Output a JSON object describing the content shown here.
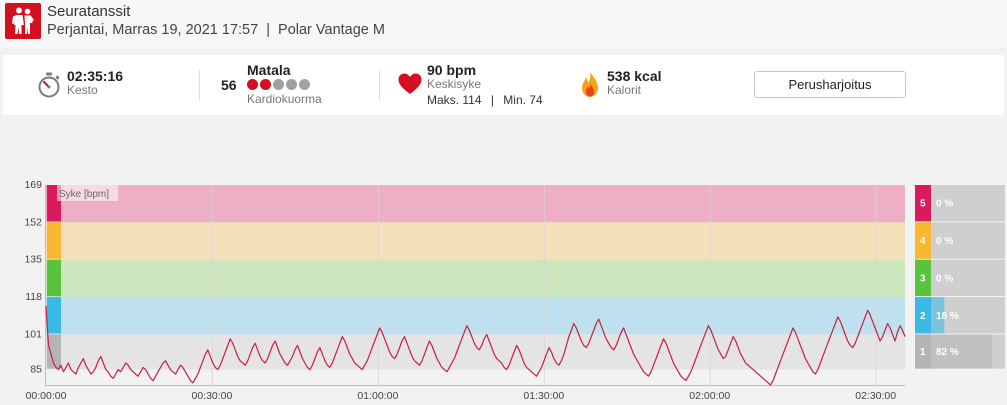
{
  "header": {
    "title": "Seuratanssit",
    "date": "Perjantai, Marras 19, 2021 17:57",
    "separator": "|",
    "device": "Polar Vantage M",
    "icon": "dancing-couple-icon",
    "icon_color": "#d3101f"
  },
  "summary": {
    "duration": {
      "value": "02:35:16",
      "label": "Kesto",
      "icon": "stopwatch-icon"
    },
    "cardio_load": {
      "value": "56",
      "level": "Matala",
      "label": "Kardiokuorma",
      "filled_dots": 2,
      "total_dots": 5,
      "dot_color": "#d3101f",
      "dot_empty_color": "#a0a0a0"
    },
    "heart_rate": {
      "value": "90 bpm",
      "label": "Keskisyke",
      "max": "Maks. 114",
      "separator": "|",
      "min": "Min. 74",
      "icon": "heart-icon",
      "icon_color": "#d3101f"
    },
    "calories": {
      "value": "538 kcal",
      "label": "Kalorit",
      "icon": "flame-icon"
    },
    "training_benefit_button": "Perusharjoitus"
  },
  "chart_data": {
    "type": "line",
    "series_label": "Syke [bpm]",
    "y_ticks": [
      "169",
      "152",
      "135",
      "118",
      "101",
      "85"
    ],
    "y_tick_values": [
      169,
      152,
      135,
      118,
      101,
      85
    ],
    "ylim": [
      78,
      169
    ],
    "x_ticks": [
      "00:00:00",
      "00:30:00",
      "01:00:00",
      "01:30:00",
      "02:00:00",
      "02:30:00"
    ],
    "x_tick_minutes": [
      0,
      30,
      60,
      90,
      120,
      150
    ],
    "xlim_minutes": [
      0,
      155.3
    ],
    "zones": [
      {
        "zone": "5",
        "from": 152,
        "to": 169,
        "percent": "0 %",
        "fraction": 0.0,
        "color": "#d81b5c",
        "band_color": "#edaec6"
      },
      {
        "zone": "4",
        "from": 135,
        "to": 152,
        "percent": "0 %",
        "fraction": 0.0,
        "color": "#f7b731",
        "band_color": "#f4e0b8"
      },
      {
        "zone": "3",
        "from": 118,
        "to": 135,
        "percent": "0 %",
        "fraction": 0.0,
        "color": "#58c33c",
        "band_color": "#cce6bd"
      },
      {
        "zone": "2",
        "from": 101,
        "to": 118,
        "percent": "18 %",
        "fraction": 0.18,
        "color": "#3ab8e6",
        "band_color": "#bfe1ef"
      },
      {
        "zone": "1",
        "from": 85,
        "to": 101,
        "percent": "82 %",
        "fraction": 0.82,
        "color": "#b4b4b4",
        "band_color": "#e4e4e4"
      }
    ],
    "line_color": "#c8203f",
    "hr_bpm": [
      114,
      96,
      92,
      88,
      86,
      85,
      87,
      84,
      86,
      88,
      85,
      84,
      83,
      86,
      88,
      90,
      87,
      85,
      83,
      84,
      86,
      89,
      91,
      88,
      85,
      84,
      82,
      81,
      83,
      85,
      84,
      86,
      88,
      87,
      85,
      84,
      83,
      82,
      84,
      86,
      85,
      83,
      81,
      80,
      82,
      84,
      86,
      88,
      89,
      87,
      85,
      84,
      83,
      85,
      87,
      86,
      84,
      82,
      80,
      79,
      81,
      83,
      86,
      89,
      92,
      94,
      91,
      88,
      86,
      85,
      87,
      90,
      93,
      96,
      99,
      97,
      94,
      91,
      89,
      88,
      87,
      89,
      92,
      95,
      97,
      94,
      91,
      89,
      88,
      90,
      93,
      96,
      98,
      95,
      92,
      90,
      88,
      87,
      89,
      91,
      94,
      96,
      93,
      90,
      88,
      86,
      85,
      87,
      90,
      93,
      95,
      92,
      89,
      87,
      86,
      88,
      91,
      94,
      97,
      100,
      98,
      95,
      92,
      90,
      88,
      87,
      86,
      85,
      87,
      89,
      92,
      95,
      98,
      101,
      104,
      102,
      99,
      96,
      93,
      91,
      90,
      92,
      95,
      98,
      100,
      97,
      94,
      91,
      89,
      88,
      87,
      89,
      92,
      95,
      98,
      96,
      93,
      90,
      88,
      86,
      85,
      84,
      86,
      88,
      90,
      93,
      96,
      99,
      102,
      105,
      103,
      100,
      97,
      95,
      94,
      96,
      99,
      101,
      98,
      95,
      92,
      90,
      89,
      88,
      86,
      85,
      87,
      90,
      93,
      96,
      94,
      91,
      88,
      86,
      85,
      84,
      83,
      82,
      84,
      86,
      89,
      92,
      95,
      93,
      90,
      88,
      87,
      89,
      92,
      96,
      100,
      103,
      106,
      104,
      101,
      98,
      96,
      95,
      97,
      100,
      103,
      106,
      108,
      105,
      102,
      99,
      97,
      95,
      94,
      96,
      99,
      102,
      104,
      101,
      98,
      95,
      92,
      90,
      88,
      86,
      84,
      83,
      82,
      84,
      87,
      90,
      93,
      96,
      99,
      97,
      94,
      91,
      88,
      86,
      84,
      82,
      81,
      80,
      82,
      84,
      87,
      90,
      93,
      96,
      99,
      102,
      105,
      103,
      100,
      97,
      94,
      92,
      90,
      91,
      94,
      97,
      100,
      98,
      95,
      92,
      90,
      88,
      87,
      86,
      85,
      84,
      83,
      82,
      81,
      80,
      79,
      78,
      80,
      83,
      86,
      89,
      92,
      95,
      98,
      101,
      104,
      102,
      99,
      96,
      93,
      90,
      88,
      86,
      84,
      83,
      85,
      88,
      91,
      94,
      97,
      100,
      103,
      106,
      109,
      107,
      104,
      101,
      98,
      96,
      95,
      97,
      100,
      103,
      106,
      109,
      112,
      110,
      107,
      104,
      101,
      98,
      100,
      103,
      106,
      104,
      101,
      98,
      102,
      105,
      103,
      100
    ]
  }
}
